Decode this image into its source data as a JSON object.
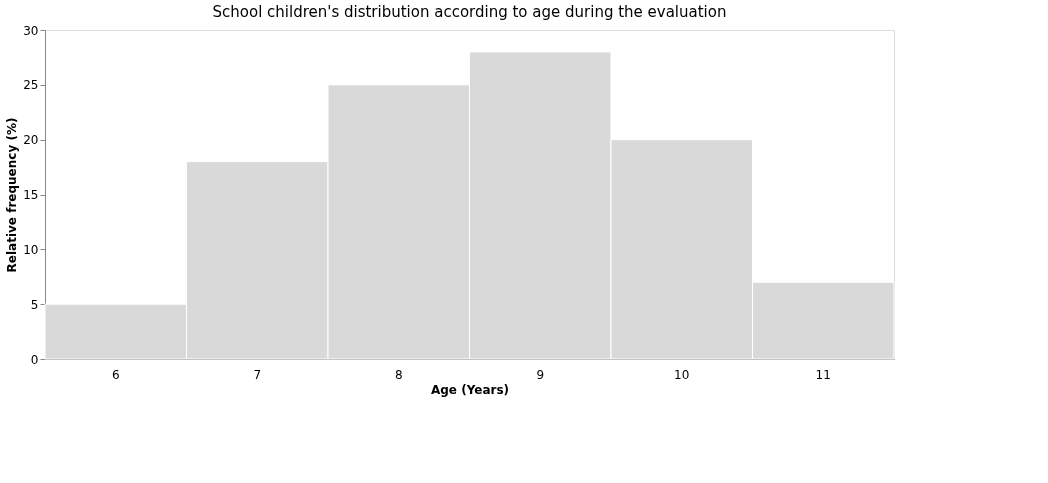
{
  "chart_data": {
    "type": "bar",
    "title": "School children's distribution according to age during the evaluation",
    "xlabel": "Age (Years)",
    "ylabel": "Relative frequency (%)",
    "categories": [
      "6",
      "7",
      "8",
      "9",
      "10",
      "11"
    ],
    "values": [
      5,
      18,
      25,
      28,
      20,
      7
    ],
    "color": "#d9d9d9",
    "ylim": [
      0,
      30
    ],
    "yticks": [
      0,
      5,
      10,
      15,
      20,
      25,
      30
    ],
    "grid": false
  }
}
